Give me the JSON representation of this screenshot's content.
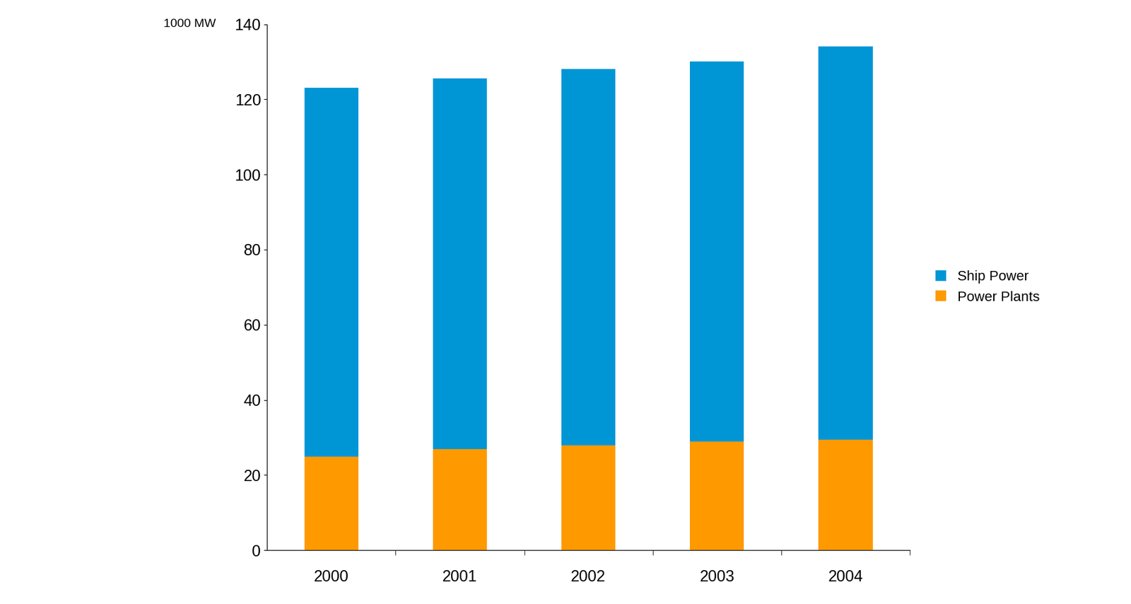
{
  "chart_data": {
    "type": "bar",
    "stacked": true,
    "ylabel": "1000 MW",
    "categories": [
      "2000",
      "2001",
      "2002",
      "2003",
      "2004"
    ],
    "series": [
      {
        "name": "Power Plants",
        "color": "#ff9900",
        "values": [
          25,
          27,
          28,
          29,
          29.5
        ]
      },
      {
        "name": "Ship Power",
        "color": "#0096d6",
        "values": [
          98,
          98.5,
          100,
          101,
          104.5
        ]
      }
    ],
    "ylim": [
      0,
      140
    ],
    "yticks": [
      0,
      20,
      40,
      60,
      80,
      100,
      120,
      140
    ],
    "grid": false,
    "legend": "right"
  }
}
